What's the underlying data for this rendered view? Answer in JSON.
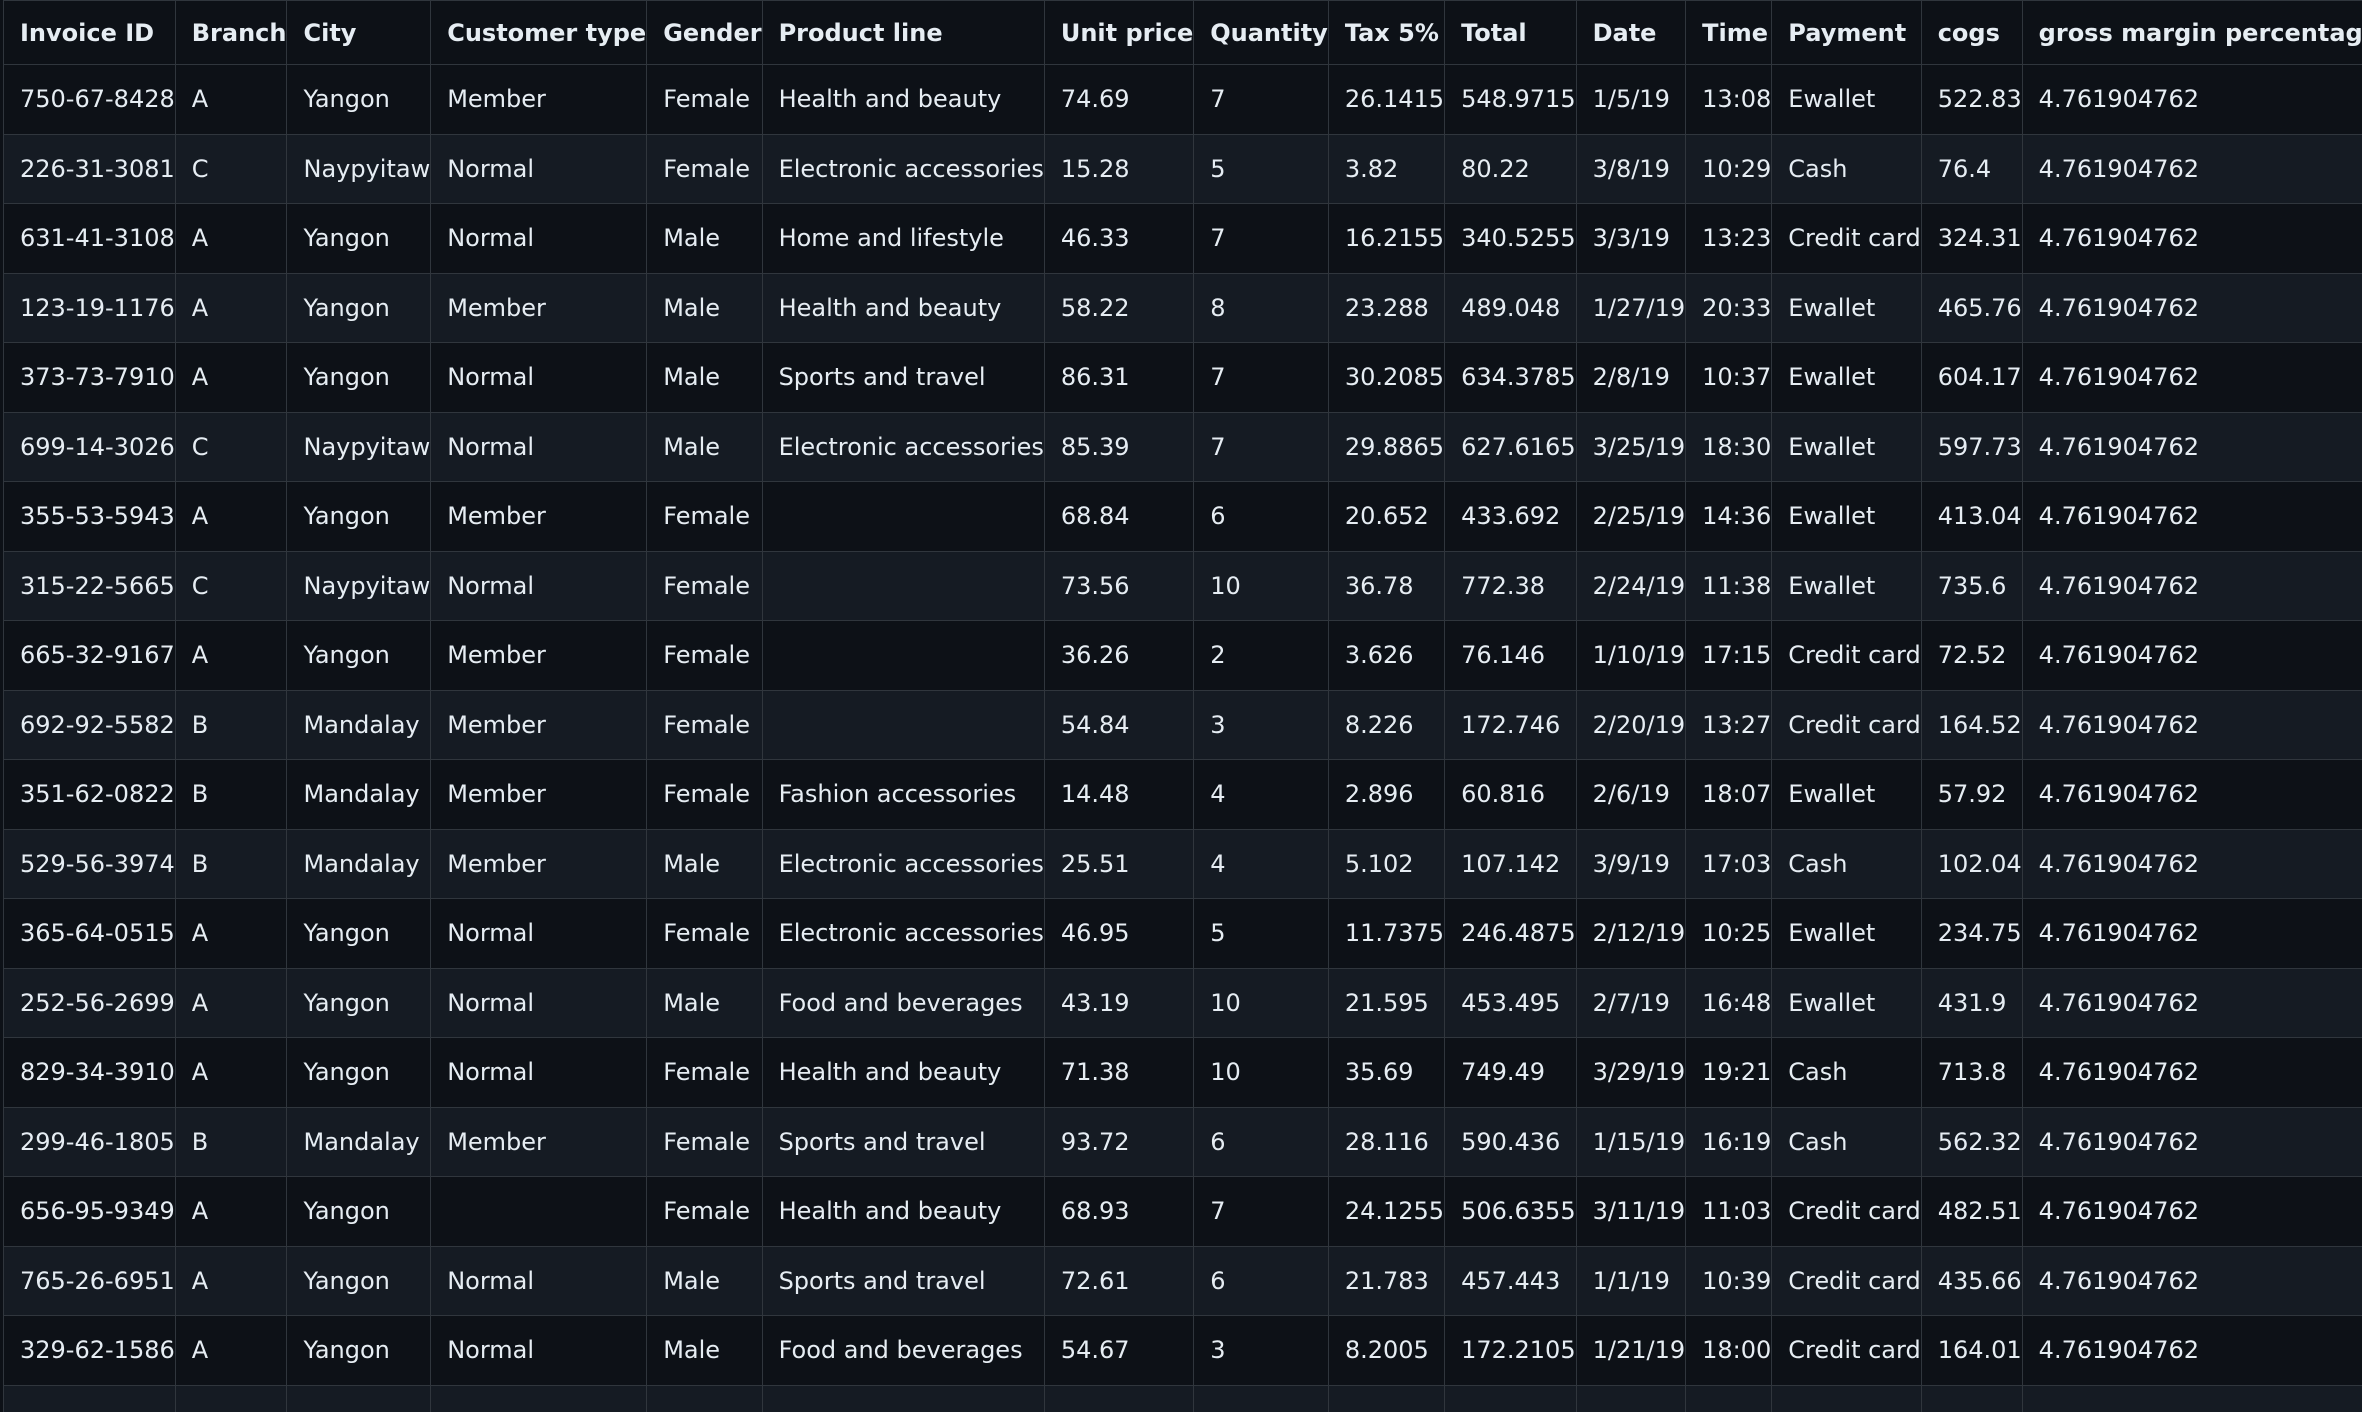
{
  "columns": [
    "Invoice ID",
    "Branch",
    "City",
    "Customer type",
    "Gender",
    "Product line",
    "Unit price",
    "Quantity",
    "Tax 5%",
    "Total",
    "Date",
    "Time",
    "Payment",
    "cogs",
    "gross margin percentage"
  ],
  "rows": [
    [
      "750-67-8428",
      "A",
      "Yangon",
      "Member",
      "Female",
      "Health and beauty",
      "74.69",
      "7",
      "26.1415",
      "548.9715",
      "1/5/19",
      "13:08",
      "Ewallet",
      "522.83",
      "4.761904762"
    ],
    [
      "226-31-3081",
      "C",
      "Naypyitaw",
      "Normal",
      "Female",
      "Electronic accessories",
      "15.28",
      "5",
      "3.82",
      "80.22",
      "3/8/19",
      "10:29",
      "Cash",
      "76.4",
      "4.761904762"
    ],
    [
      "631-41-3108",
      "A",
      "Yangon",
      "Normal",
      "Male",
      "Home and lifestyle",
      "46.33",
      "7",
      "16.2155",
      "340.5255",
      "3/3/19",
      "13:23",
      "Credit card",
      "324.31",
      "4.761904762"
    ],
    [
      "123-19-1176",
      "A",
      "Yangon",
      "Member",
      "Male",
      "Health and beauty",
      "58.22",
      "8",
      "23.288",
      "489.048",
      "1/27/19",
      "20:33",
      "Ewallet",
      "465.76",
      "4.761904762"
    ],
    [
      "373-73-7910",
      "A",
      "Yangon",
      "Normal",
      "Male",
      "Sports and travel",
      "86.31",
      "7",
      "30.2085",
      "634.3785",
      "2/8/19",
      "10:37",
      "Ewallet",
      "604.17",
      "4.761904762"
    ],
    [
      "699-14-3026",
      "C",
      "Naypyitaw",
      "Normal",
      "Male",
      "Electronic accessories",
      "85.39",
      "7",
      "29.8865",
      "627.6165",
      "3/25/19",
      "18:30",
      "Ewallet",
      "597.73",
      "4.761904762"
    ],
    [
      "355-53-5943",
      "A",
      "Yangon",
      "Member",
      "Female",
      "",
      "68.84",
      "6",
      "20.652",
      "433.692",
      "2/25/19",
      "14:36",
      "Ewallet",
      "413.04",
      "4.761904762"
    ],
    [
      "315-22-5665",
      "C",
      "Naypyitaw",
      "Normal",
      "Female",
      "",
      "73.56",
      "10",
      "36.78",
      "772.38",
      "2/24/19",
      "11:38",
      "Ewallet",
      "735.6",
      "4.761904762"
    ],
    [
      "665-32-9167",
      "A",
      "Yangon",
      "Member",
      "Female",
      "",
      "36.26",
      "2",
      "3.626",
      "76.146",
      "1/10/19",
      "17:15",
      "Credit card",
      "72.52",
      "4.761904762"
    ],
    [
      "692-92-5582",
      "B",
      "Mandalay",
      "Member",
      "Female",
      "",
      "54.84",
      "3",
      "8.226",
      "172.746",
      "2/20/19",
      "13:27",
      "Credit card",
      "164.52",
      "4.761904762"
    ],
    [
      "351-62-0822",
      "B",
      "Mandalay",
      "Member",
      "Female",
      "Fashion accessories",
      "14.48",
      "4",
      "2.896",
      "60.816",
      "2/6/19",
      "18:07",
      "Ewallet",
      "57.92",
      "4.761904762"
    ],
    [
      "529-56-3974",
      "B",
      "Mandalay",
      "Member",
      "Male",
      "Electronic accessories",
      "25.51",
      "4",
      "5.102",
      "107.142",
      "3/9/19",
      "17:03",
      "Cash",
      "102.04",
      "4.761904762"
    ],
    [
      "365-64-0515",
      "A",
      "Yangon",
      "Normal",
      "Female",
      "Electronic accessories",
      "46.95",
      "5",
      "11.7375",
      "246.4875",
      "2/12/19",
      "10:25",
      "Ewallet",
      "234.75",
      "4.761904762"
    ],
    [
      "252-56-2699",
      "A",
      "Yangon",
      "Normal",
      "Male",
      "Food and beverages",
      "43.19",
      "10",
      "21.595",
      "453.495",
      "2/7/19",
      "16:48",
      "Ewallet",
      "431.9",
      "4.761904762"
    ],
    [
      "829-34-3910",
      "A",
      "Yangon",
      "Normal",
      "Female",
      "Health and beauty",
      "71.38",
      "10",
      "35.69",
      "749.49",
      "3/29/19",
      "19:21",
      "Cash",
      "713.8",
      "4.761904762"
    ],
    [
      "299-46-1805",
      "B",
      "Mandalay",
      "Member",
      "Female",
      "Sports and travel",
      "93.72",
      "6",
      "28.116",
      "590.436",
      "1/15/19",
      "16:19",
      "Cash",
      "562.32",
      "4.761904762"
    ],
    [
      "656-95-9349",
      "A",
      "Yangon",
      "",
      "Female",
      "Health and beauty",
      "68.93",
      "7",
      "24.1255",
      "506.6355",
      "3/11/19",
      "11:03",
      "Credit card",
      "482.51",
      "4.761904762"
    ],
    [
      "765-26-6951",
      "A",
      "Yangon",
      "Normal",
      "Male",
      "Sports and travel",
      "72.61",
      "6",
      "21.783",
      "457.443",
      "1/1/19",
      "10:39",
      "Credit card",
      "435.66",
      "4.761904762"
    ],
    [
      "329-62-1586",
      "A",
      "Yangon",
      "Normal",
      "Male",
      "Food and beverages",
      "54.67",
      "3",
      "8.2005",
      "172.2105",
      "1/21/19",
      "18:00",
      "Credit card",
      "164.01",
      "4.761904762"
    ],
    [
      "",
      "",
      "",
      "",
      "",
      "",
      "",
      "",
      "",
      "",
      "",
      "",
      "",
      "",
      ""
    ]
  ]
}
